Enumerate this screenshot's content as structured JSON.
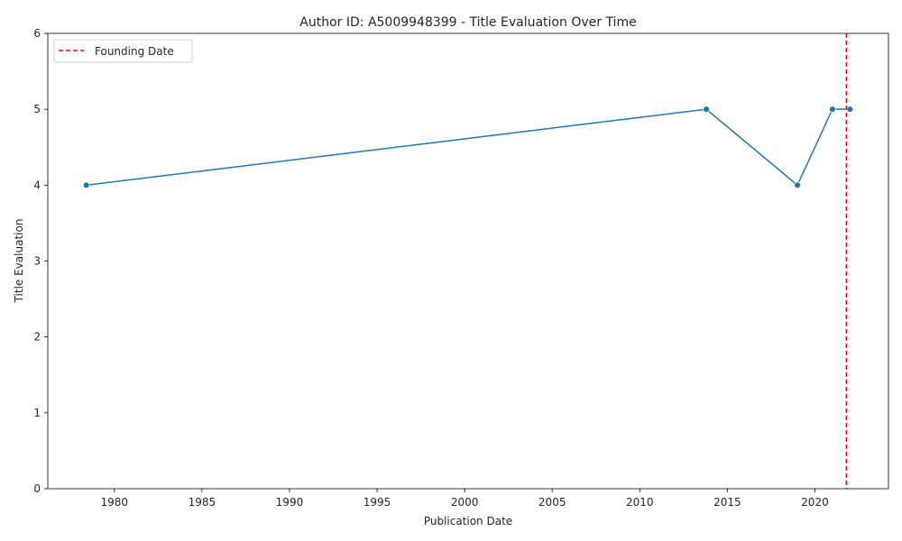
{
  "chart_data": {
    "type": "line",
    "title": "Author ID: A5009948399 - Title Evaluation Over Time",
    "xlabel": "Publication Date",
    "ylabel": "Title Evaluation",
    "xlim": [
      1976.2,
      2024.2
    ],
    "ylim": [
      0,
      6
    ],
    "x_ticks": [
      1980,
      1985,
      1990,
      1995,
      2000,
      2005,
      2010,
      2015,
      2020
    ],
    "y_ticks": [
      0,
      1,
      2,
      3,
      4,
      5,
      6
    ],
    "series": [
      {
        "color": "#1f77b4",
        "marker": "circle",
        "points": [
          {
            "x": 1978.4,
            "y": 4
          },
          {
            "x": 2013.8,
            "y": 5
          },
          {
            "x": 2019.0,
            "y": 4
          },
          {
            "x": 2021.0,
            "y": 5
          },
          {
            "x": 2022.0,
            "y": 5
          }
        ]
      }
    ],
    "reference_lines": [
      {
        "name": "Founding Date",
        "x": 2021.8,
        "color": "#ff0000",
        "style": "dashed"
      }
    ],
    "legend": {
      "position": "top-left",
      "entries": [
        "Founding Date"
      ]
    },
    "grid": false
  }
}
